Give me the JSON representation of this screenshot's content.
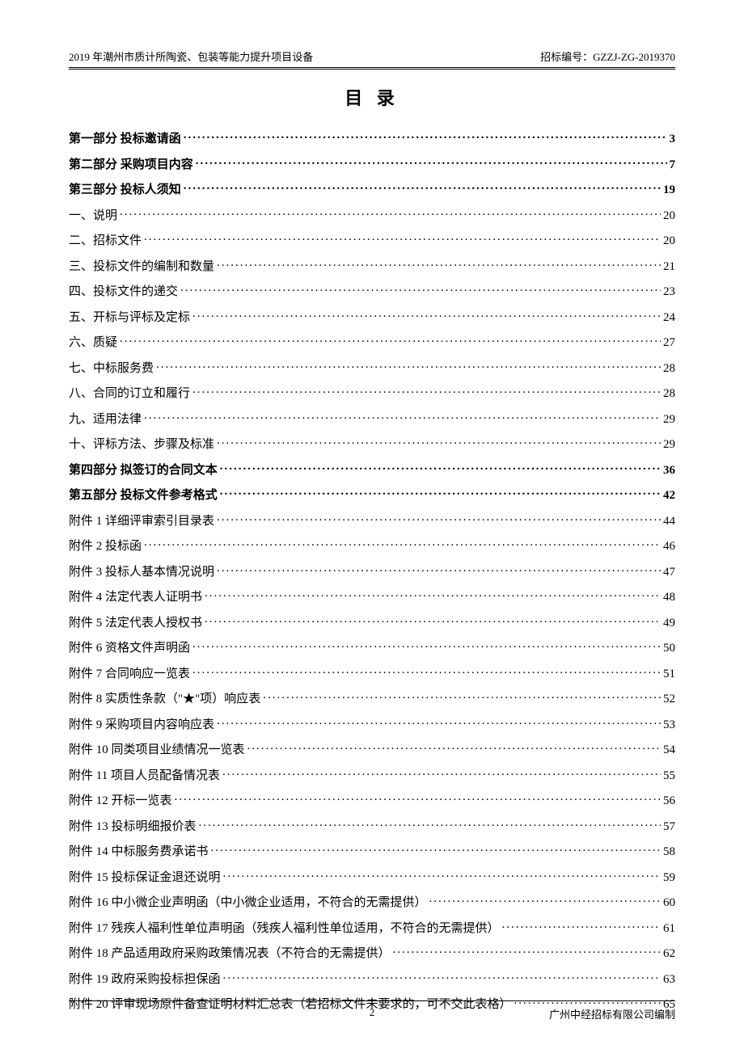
{
  "header": {
    "left": "2019 年潮州市质计所陶瓷、包装等能力提升项目设备",
    "right": "招标编号：GZZJ-ZG-2019370"
  },
  "title": "目 录",
  "toc": [
    {
      "label": "第一部分 投标邀请函",
      "page": "3",
      "bold": true
    },
    {
      "label": "第二部分 采购项目内容",
      "page": "7",
      "bold": true
    },
    {
      "label": "第三部分 投标人须知",
      "page": "19",
      "bold": true
    },
    {
      "label": "一、说明",
      "page": "20",
      "bold": false
    },
    {
      "label": "二、招标文件",
      "page": "20",
      "bold": false
    },
    {
      "label": "三、投标文件的编制和数量",
      "page": "21",
      "bold": false
    },
    {
      "label": "四、投标文件的递交",
      "page": "23",
      "bold": false
    },
    {
      "label": "五、开标与评标及定标",
      "page": "24",
      "bold": false
    },
    {
      "label": "六、质疑",
      "page": "27",
      "bold": false
    },
    {
      "label": "七、中标服务费",
      "page": "28",
      "bold": false
    },
    {
      "label": "八、合同的订立和履行",
      "page": "28",
      "bold": false
    },
    {
      "label": "九、适用法律",
      "page": "29",
      "bold": false
    },
    {
      "label": "十、评标方法、步骤及标准",
      "page": "29",
      "bold": false
    },
    {
      "label": "第四部分 拟签订的合同文本",
      "page": "36",
      "bold": true
    },
    {
      "label": "第五部分 投标文件参考格式",
      "page": "42",
      "bold": true
    },
    {
      "label": "附件 1 详细评审索引目录表",
      "page": "44",
      "bold": false
    },
    {
      "label": "附件 2 投标函",
      "page": "46",
      "bold": false
    },
    {
      "label": "附件 3 投标人基本情况说明",
      "page": "47",
      "bold": false
    },
    {
      "label": "附件 4 法定代表人证明书",
      "page": "48",
      "bold": false
    },
    {
      "label": "附件 5 法定代表人授权书",
      "page": "49",
      "bold": false
    },
    {
      "label": "附件 6 资格文件声明函",
      "page": "50",
      "bold": false
    },
    {
      "label": "附件 7 合同响应一览表",
      "page": "51",
      "bold": false
    },
    {
      "label": "附件 8 实质性条款（\"★\"项）响应表",
      "page": "52",
      "bold": false
    },
    {
      "label": "附件 9 采购项目内容响应表",
      "page": "53",
      "bold": false
    },
    {
      "label": "附件 10 同类项目业绩情况一览表",
      "page": "54",
      "bold": false
    },
    {
      "label": "附件 11 项目人员配备情况表",
      "page": "55",
      "bold": false
    },
    {
      "label": "附件 12 开标一览表",
      "page": "56",
      "bold": false
    },
    {
      "label": "附件 13 投标明细报价表",
      "page": "57",
      "bold": false
    },
    {
      "label": "附件 14 中标服务费承诺书",
      "page": "58",
      "bold": false
    },
    {
      "label": "附件 15 投标保证金退还说明",
      "page": "59",
      "bold": false
    },
    {
      "label": "附件 16 中小微企业声明函（中小微企业适用，不符合的无需提供）",
      "page": "60",
      "bold": false
    },
    {
      "label": "附件 17 残疾人福利性单位声明函（残疾人福利性单位适用，不符合的无需提供）",
      "page": "61",
      "bold": false
    },
    {
      "label": "附件 18 产品适用政府采购政策情况表（不符合的无需提供）",
      "page": "62",
      "bold": false
    },
    {
      "label": "附件 19 政府采购投标担保函",
      "page": "63",
      "bold": false
    },
    {
      "label": "附件 20 评审现场原件备查证明材料汇总表（若招标文件未要求的，可不交此表格）",
      "page": "65",
      "bold": false
    }
  ],
  "footer": {
    "pageNumber": "2",
    "right": "广州中经招标有限公司编制"
  }
}
